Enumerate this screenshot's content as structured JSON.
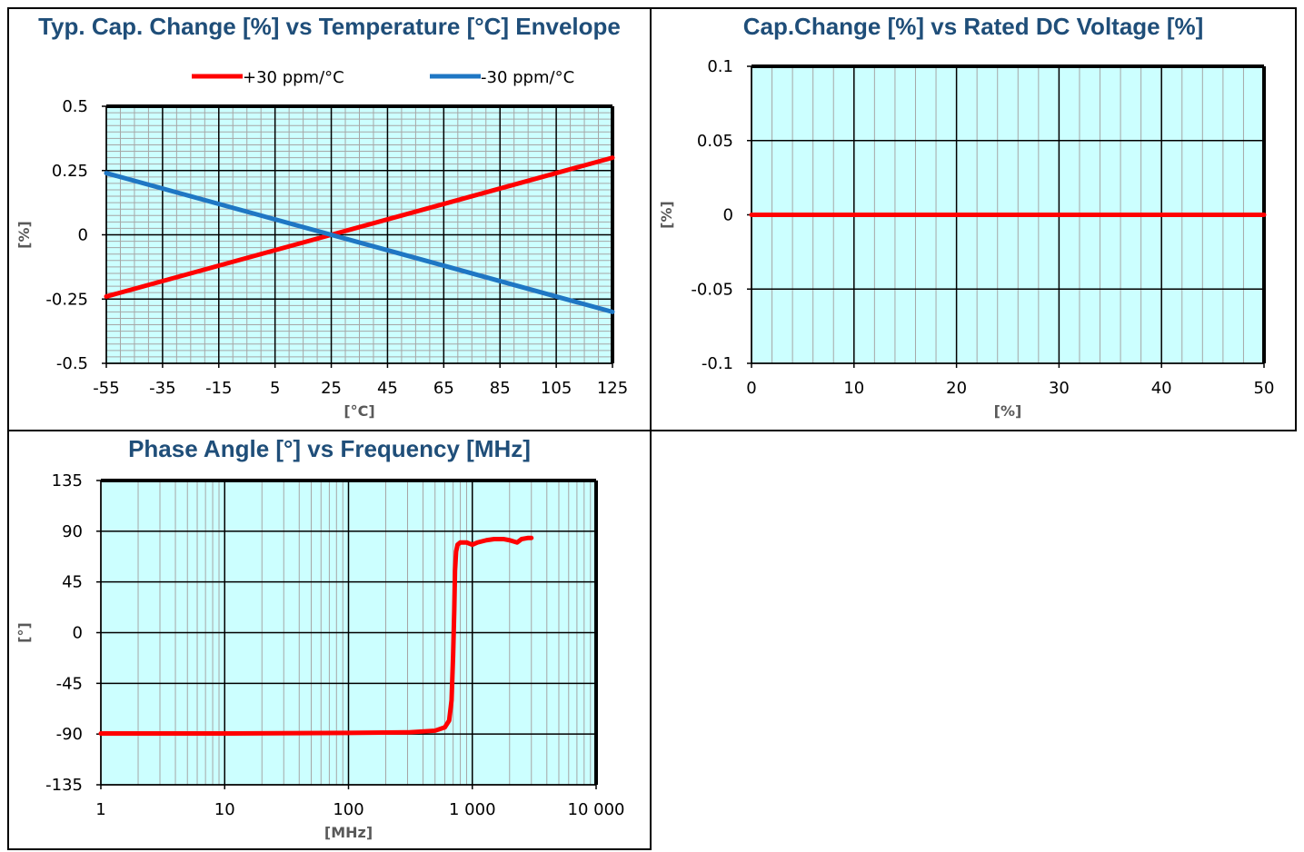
{
  "chart_data": [
    {
      "type": "line",
      "title": "Typ. Cap. Change [%] vs Temperature [°C] Envelope",
      "xlabel": "[°C]",
      "ylabel": "[%]",
      "xlim": [
        -55,
        125
      ],
      "ylim": [
        -0.5,
        0.5
      ],
      "x_ticks": [
        -55,
        -35,
        -15,
        5,
        25,
        45,
        65,
        85,
        105,
        125
      ],
      "y_ticks": [
        0.5,
        0.25,
        0,
        -0.25,
        -0.5
      ],
      "y_tick_labels": [
        "0.5",
        "0.25",
        "0",
        "-0.25",
        "-0.5"
      ],
      "grid": true,
      "legend_position": "top",
      "series": [
        {
          "name": "+30 ppm/°C",
          "color": "#ff0000",
          "x": [
            -55,
            125
          ],
          "y": [
            -0.24,
            0.3
          ]
        },
        {
          "name": "-30 ppm/°C",
          "color": "#1f77c4",
          "x": [
            -55,
            125
          ],
          "y": [
            0.24,
            -0.3
          ]
        }
      ]
    },
    {
      "type": "line",
      "title": "Cap.Change [%] vs Rated DC Voltage [%]",
      "xlabel": "[%]",
      "ylabel": "[%]",
      "xlim": [
        0,
        50
      ],
      "ylim": [
        -0.1,
        0.1
      ],
      "x_ticks": [
        0,
        10,
        20,
        30,
        40,
        50
      ],
      "y_ticks": [
        0.1,
        0.05,
        0,
        -0.05,
        -0.1
      ],
      "y_tick_labels": [
        "0.1",
        "0.05",
        "0",
        "-0.05",
        "-0.1"
      ],
      "grid": true,
      "series": [
        {
          "color": "#ff0000",
          "x": [
            0,
            50
          ],
          "y": [
            0,
            0
          ]
        }
      ]
    },
    {
      "type": "line",
      "title": "Phase Angle [°] vs Frequency [MHz]",
      "xlabel": "[MHz]",
      "ylabel": "[°]",
      "xscale": "log",
      "xlim": [
        1,
        10000
      ],
      "ylim": [
        -135,
        135
      ],
      "x_ticks": [
        1,
        10,
        100,
        1000,
        10000
      ],
      "x_tick_labels": [
        "1",
        "10",
        "100",
        "1 000",
        "10 000"
      ],
      "y_ticks": [
        135,
        90,
        45,
        0,
        -45,
        -90,
        -135
      ],
      "y_tick_labels": [
        "135",
        "90",
        "45",
        "0",
        "-45",
        "-90",
        "-135"
      ],
      "grid": true,
      "series": [
        {
          "color": "#ff0000",
          "x": [
            1,
            10,
            100,
            300,
            500,
            600,
            650,
            680,
            700,
            715,
            725,
            740,
            760,
            800,
            900,
            1000,
            1100,
            1300,
            1500,
            1800,
            2000,
            2300,
            2500,
            2800,
            3000
          ],
          "y": [
            -89.5,
            -89.5,
            -89,
            -88.5,
            -87,
            -84,
            -78,
            -60,
            -20,
            20,
            55,
            72,
            78,
            80,
            80,
            78,
            80,
            82,
            83,
            83,
            82,
            80,
            83,
            84,
            84
          ]
        }
      ]
    }
  ]
}
